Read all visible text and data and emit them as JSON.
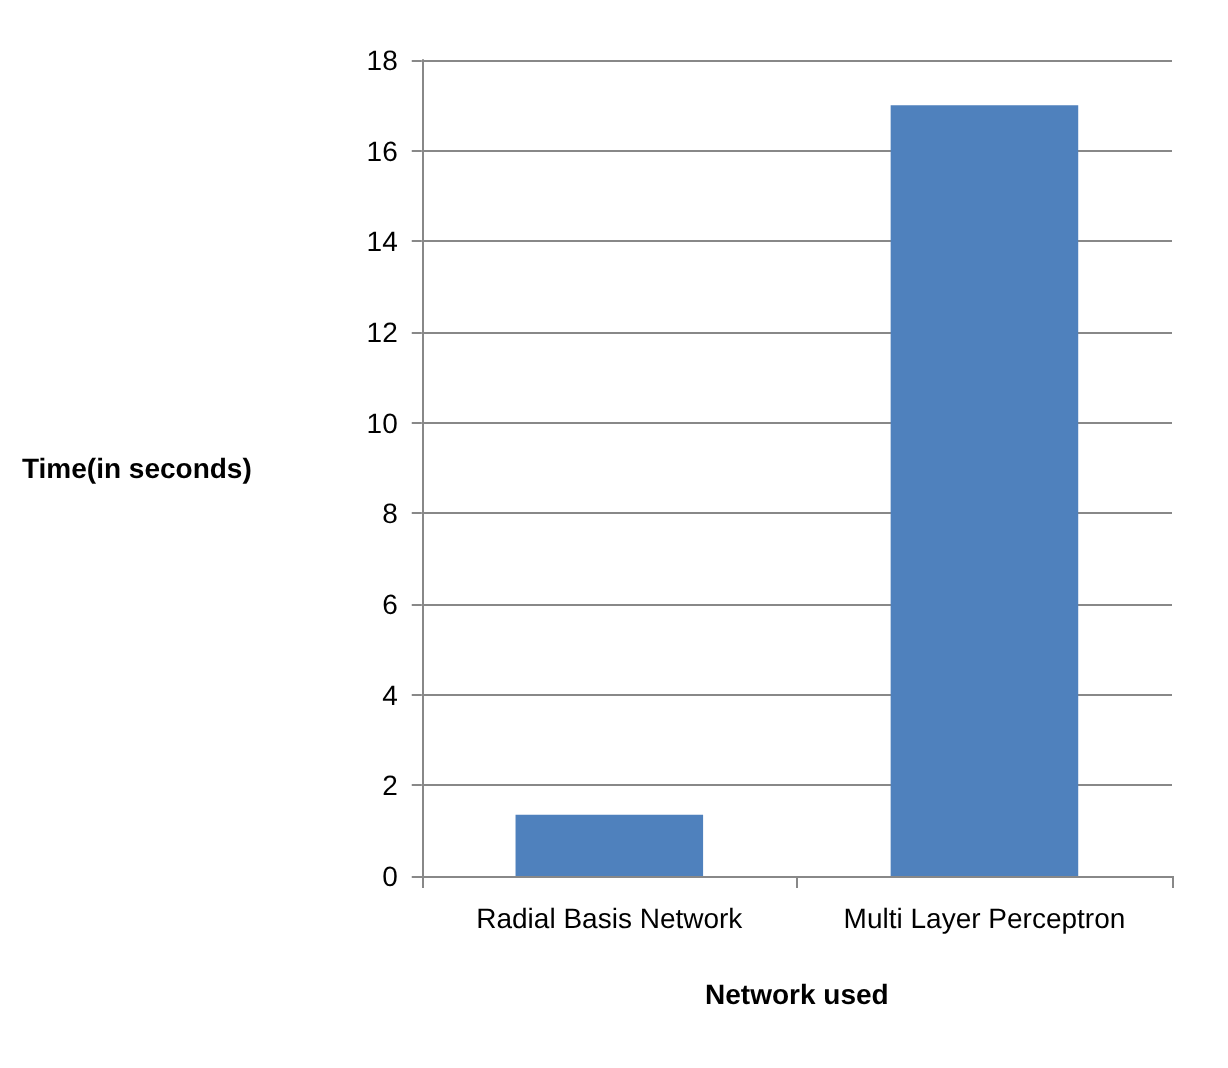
{
  "chart_data": {
    "type": "bar",
    "xlabel": "Network used",
    "ylabel": "Time(in seconds)",
    "categories": [
      "Radial Basis Network",
      "Multi Layer Perceptron"
    ],
    "values": [
      1.35,
      17
    ],
    "color": "#4f81bd",
    "ylim": [
      0,
      18
    ],
    "yticks": [
      0,
      2,
      4,
      6,
      8,
      10,
      12,
      14,
      16,
      18
    ],
    "grid": "y"
  }
}
